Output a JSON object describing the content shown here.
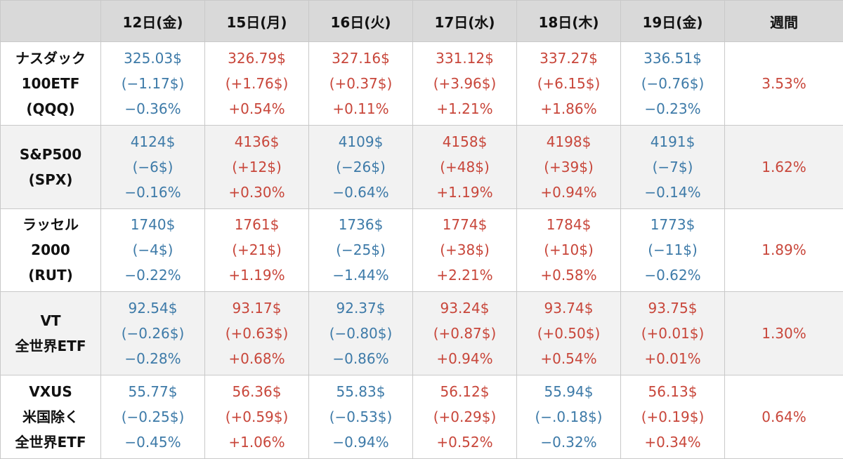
{
  "chart_data": {
    "type": "table",
    "colors": {
      "down": "#3d7aa8",
      "up": "#c8463a",
      "header_bg": "#d9d9d9",
      "shade_bg": "#f2f2f2"
    },
    "columns": [
      "12日(金)",
      "15日(月)",
      "16日(火)",
      "17日(水)",
      "18日(木)",
      "19日(金)",
      "週間"
    ],
    "rows": [
      {
        "name": [
          "ナスダック",
          "100ETF",
          "(QQQ)"
        ],
        "cells": [
          {
            "price": "325.03$",
            "change": "(−1.17$)",
            "pct": "−0.36%",
            "dir": "down"
          },
          {
            "price": "326.79$",
            "change": "(+1.76$)",
            "pct": "+0.54%",
            "dir": "up"
          },
          {
            "price": "327.16$",
            "change": "(+0.37$)",
            "pct": "+0.11%",
            "dir": "up"
          },
          {
            "price": "331.12$",
            "change": "(+3.96$)",
            "pct": "+1.21%",
            "dir": "up"
          },
          {
            "price": "337.27$",
            "change": "(+6.15$)",
            "pct": "+1.86%",
            "dir": "up"
          },
          {
            "price": "336.51$",
            "change": "(−0.76$)",
            "pct": "−0.23%",
            "dir": "down"
          }
        ],
        "weekly": "3.53%"
      },
      {
        "name": [
          "S&P500",
          "(SPX)"
        ],
        "cells": [
          {
            "price": "4124$",
            "change": "(−6$)",
            "pct": "−0.16%",
            "dir": "down"
          },
          {
            "price": "4136$",
            "change": "(+12$)",
            "pct": "+0.30%",
            "dir": "up"
          },
          {
            "price": "4109$",
            "change": "(−26$)",
            "pct": "−0.64%",
            "dir": "down"
          },
          {
            "price": "4158$",
            "change": "(+48$)",
            "pct": "+1.19%",
            "dir": "up"
          },
          {
            "price": "4198$",
            "change": "(+39$)",
            "pct": "+0.94%",
            "dir": "up"
          },
          {
            "price": "4191$",
            "change": "(−7$)",
            "pct": "−0.14%",
            "dir": "down"
          }
        ],
        "weekly": "1.62%"
      },
      {
        "name": [
          "ラッセル",
          "2000",
          "(RUT)"
        ],
        "cells": [
          {
            "price": "1740$",
            "change": "(−4$)",
            "pct": "−0.22%",
            "dir": "down"
          },
          {
            "price": "1761$",
            "change": "(+21$)",
            "pct": "+1.19%",
            "dir": "up"
          },
          {
            "price": "1736$",
            "change": "(−25$)",
            "pct": "−1.44%",
            "dir": "down"
          },
          {
            "price": "1774$",
            "change": "(+38$)",
            "pct": "+2.21%",
            "dir": "up"
          },
          {
            "price": "1784$",
            "change": "(+10$)",
            "pct": "+0.58%",
            "dir": "up"
          },
          {
            "price": "1773$",
            "change": "(−11$)",
            "pct": "−0.62%",
            "dir": "down"
          }
        ],
        "weekly": "1.89%"
      },
      {
        "name": [
          "VT",
          "全世界ETF"
        ],
        "cells": [
          {
            "price": "92.54$",
            "change": "(−0.26$)",
            "pct": "−0.28%",
            "dir": "down"
          },
          {
            "price": "93.17$",
            "change": "(+0.63$)",
            "pct": "+0.68%",
            "dir": "up"
          },
          {
            "price": "92.37$",
            "change": "(−0.80$)",
            "pct": "−0.86%",
            "dir": "down"
          },
          {
            "price": "93.24$",
            "change": "(+0.87$)",
            "pct": "+0.94%",
            "dir": "up"
          },
          {
            "price": "93.74$",
            "change": "(+0.50$)",
            "pct": "+0.54%",
            "dir": "up"
          },
          {
            "price": "93.75$",
            "change": "(+0.01$)",
            "pct": "+0.01%",
            "dir": "up"
          }
        ],
        "weekly": "1.30%"
      },
      {
        "name": [
          "VXUS",
          "米国除く",
          "全世界ETF"
        ],
        "cells": [
          {
            "price": "55.77$",
            "change": "(−0.25$)",
            "pct": "−0.45%",
            "dir": "down"
          },
          {
            "price": "56.36$",
            "change": "(+0.59$)",
            "pct": "+1.06%",
            "dir": "up"
          },
          {
            "price": "55.83$",
            "change": "(−0.53$)",
            "pct": "−0.94%",
            "dir": "down"
          },
          {
            "price": "56.12$",
            "change": "(+0.29$)",
            "pct": "+0.52%",
            "dir": "up"
          },
          {
            "price": "55.94$",
            "change": "(−.0.18$)",
            "pct": "−0.32%",
            "dir": "down"
          },
          {
            "price": "56.13$",
            "change": "(+0.19$)",
            "pct": "+0.34%",
            "dir": "up"
          }
        ],
        "weekly": "0.64%"
      }
    ]
  }
}
